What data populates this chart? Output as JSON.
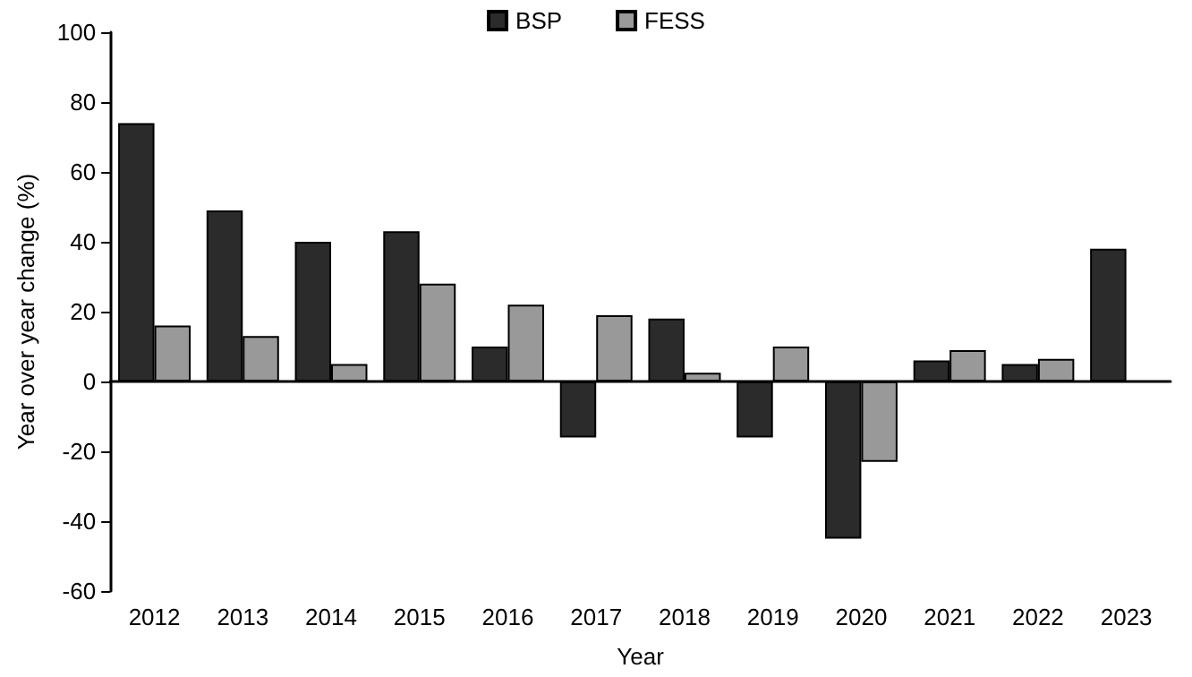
{
  "chart_data": {
    "type": "bar",
    "xlabel": "Year",
    "ylabel": "Year over year change (%)",
    "categories": [
      "2012",
      "2013",
      "2014",
      "2015",
      "2016",
      "2017",
      "2018",
      "2019",
      "2020",
      "2021",
      "2022",
      "2023"
    ],
    "series": [
      {
        "name": "BSP",
        "color": "#2b2b2b",
        "values": [
          74,
          49,
          40,
          43,
          10,
          -16,
          18,
          -16,
          -45,
          6,
          5,
          38
        ]
      },
      {
        "name": "FESS",
        "color": "#999999",
        "values": [
          16,
          13,
          5,
          28,
          22,
          19,
          2.5,
          10,
          -23,
          9,
          6.5,
          null
        ]
      }
    ],
    "ylim": [
      -60,
      100
    ],
    "yticks": [
      -60,
      -40,
      -20,
      0,
      20,
      40,
      60,
      80,
      100
    ],
    "legend": "top"
  }
}
